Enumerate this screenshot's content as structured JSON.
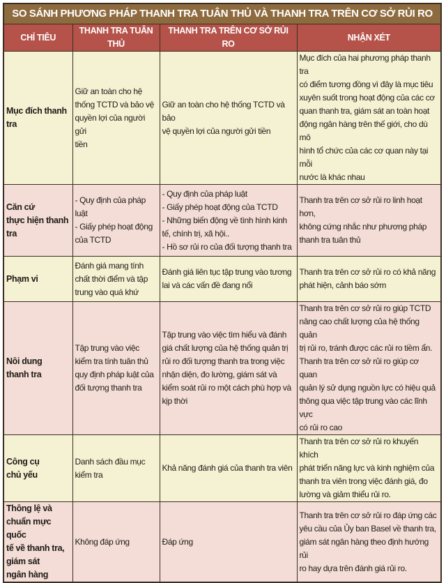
{
  "title": "SO SÁNH PHƯƠNG PHÁP THANH TRA TUÂN THỦ VÀ THANH TRA TRÊN CƠ SỞ RỦI RO",
  "colors": {
    "title_bg": "#8e6b3f",
    "header_bg": "#b5534a",
    "row_yellow": "#f5f2d3",
    "row_pink": "#f3ddd6"
  },
  "headers": [
    "CHỈ TIÊU",
    "THANH TRA TUÂN THỦ",
    "THANH TRA TRÊN CƠ SỞ RỦI RO",
    "NHẬN XÉT"
  ],
  "rows": [
    {
      "criterion": "Mục đích thanh\ntra",
      "compliance": "Giữ an toàn cho hệ\nthống TCTD và bảo vệ\nquyền lợi của người gửi\ntiền",
      "risk_based": "Giữ an toàn cho hệ thống TCTD và bảo\nvệ quyền lợi của người gửi tiền",
      "comment": "Mục đích của hai phương pháp thanh tra\ncó điểm tương đồng vì đây là mục tiêu\nxuyên suốt trong hoạt động của các cơ\nquan thanh tra, giám sát an toàn hoạt\nđộng ngân hàng trên thế giới, cho dù mô\nhình tổ chức của các cơ quan này tại mỗi\nnước là khác nhau"
    },
    {
      "criterion": "Căn cứ\nthực hiện thanh\ntra",
      "compliance": "- Quy định của pháp\nluật\n- Giấy phép hoạt động\ncủa TCTD",
      "risk_based": "- Quy định của pháp luật\n- Giấy phép hoạt động của TCTD\n- Những biến động về tình hình kinh\ntế, chính trị, xã hội..\n- Hồ sơ rủi ro của đối tượng thanh tra",
      "comment": "Thanh tra trên cơ sở rủi ro linh hoạt hơn,\nkhông cứng nhắc như phương pháp\nthanh tra tuân thủ"
    },
    {
      "criterion": "Phạm vi",
      "compliance": "Đánh giá mang tính\nchất thời điểm và tập\ntrung vào quá khứ",
      "risk_based": "Đánh giá liên tục tập trung vào tương\nlai và các vấn đề đang nổi",
      "comment": "Thanh tra trên cơ sở rủi ro có khả năng\nphát hiện, cảnh báo sớm"
    },
    {
      "criterion": "Nôi dung\nthanh tra",
      "compliance": "Tập trung vào việc\nkiểm tra tính tuân thủ\nquy định pháp luật của\nđối tượng thanh tra",
      "risk_based": "Tập trung vào việc tìm hiểu và đánh\ngiá chất lượng của hệ thống quản trị\nrủi ro đối tượng thanh tra trong việc\nnhận diện, đo lường, giám sát và\nkiểm soát rủi ro một cách phù hợp và\nkịp thời",
      "comment": "Thanh tra trên cơ sở rủi ro giúp TCTD\nnâng cao chất lượng của hệ thống quản\ntrị rủi ro, tránh được các rủi ro tiềm ẩn.\nThanh tra trên cơ sở rủi ro giúp cơ quan\nquản lý sử dụng nguồn lực có hiệu quả\nthông qua việc tập trung vào các lĩnh vực\ncó rủi ro cao"
    },
    {
      "criterion": "Công cụ\nchủ yếu",
      "compliance": "Danh sách đầu mục\nkiểm tra",
      "risk_based": "Khả năng đánh giá của thanh tra viên",
      "comment": "Thanh tra trên cơ sở rủi ro khuyến khích\nphát triển năng lực và kinh nghiệm của\nthanh tra viên trong việc đánh giá, đo\nlường và giảm thiểu rủi ro."
    },
    {
      "criterion": "Thông lệ và\nchuẩn mực quốc\ntế về thanh tra,\ngiám sát\nngân hàng",
      "compliance": "Không đáp ứng",
      "risk_based": "Đáp ứng",
      "comment": "Thanh tra trên cơ sở rủi ro đáp ứng các\nyêu cầu của Ủy ban Basel về thanh tra,\ngiám sát ngân hàng theo định hướng rủi\nro hay dựa trên đánh giá rủi ro."
    }
  ]
}
